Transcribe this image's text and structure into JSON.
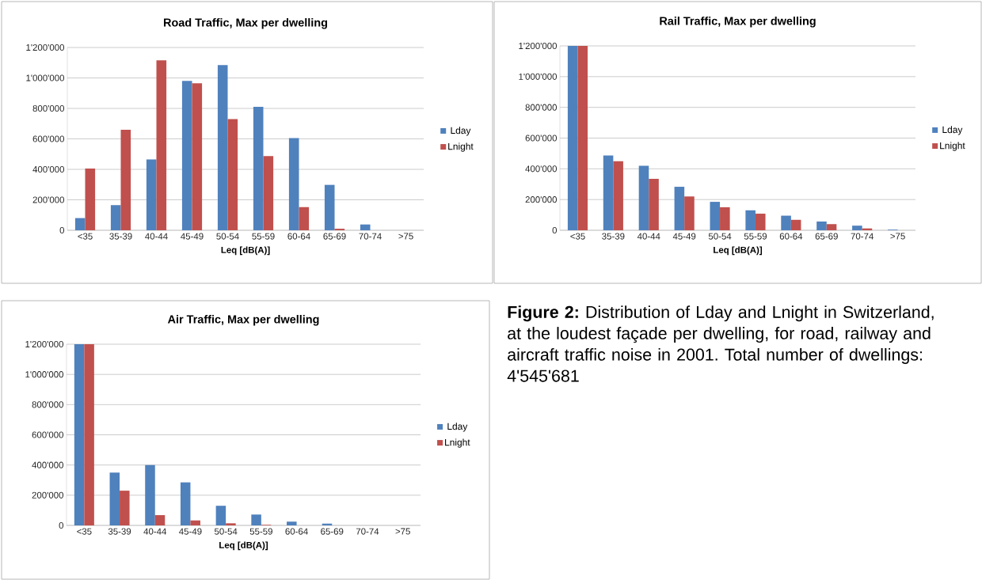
{
  "chart_data": [
    {
      "type": "bar",
      "title": "Road Traffic, Max per dwelling",
      "xlabel": "Leq [dB(A)]",
      "categories": [
        "<35",
        "35-39",
        "40-44",
        "45-49",
        "50-54",
        "55-59",
        "60-64",
        "65-69",
        "70-74",
        ">75"
      ],
      "series": [
        {
          "name": "Lday",
          "color": "#4f81bd",
          "values": [
            80000,
            165000,
            465000,
            980000,
            1085000,
            810000,
            605000,
            298000,
            38000,
            0
          ]
        },
        {
          "name": "Lnight",
          "color": "#c0504d",
          "values": [
            405000,
            660000,
            1115000,
            965000,
            730000,
            487000,
            152000,
            10000,
            0,
            0
          ]
        }
      ],
      "ylim": [
        0,
        1200000
      ],
      "yticks": [
        0,
        {
          "value": 200000,
          "label": "200'000"
        },
        {
          "value": 400000,
          "label": "400'000"
        },
        {
          "value": 600000,
          "label": "600'000"
        },
        {
          "value": 800000,
          "label": "800'000"
        },
        {
          "value": 1000000,
          "label": "1'000'000"
        },
        {
          "value": 1200000,
          "label": "1'200'000"
        }
      ],
      "grid": "y",
      "legend": "right"
    },
    {
      "type": "bar",
      "title": "Rail Traffic, Max per dwelling",
      "xlabel": "Leq [dB(A)]",
      "categories": [
        "<35",
        "35-39",
        "40-44",
        "45-49",
        "50-54",
        "55-59",
        "60-64",
        "65-69",
        "70-74",
        ">75"
      ],
      "series": [
        {
          "name": "Lday",
          "color": "#4f81bd",
          "values": [
            1200000,
            487000,
            420000,
            283000,
            185000,
            130000,
            95000,
            57000,
            30000,
            4000
          ]
        },
        {
          "name": "Lnight",
          "color": "#c0504d",
          "values": [
            1200000,
            450000,
            335000,
            220000,
            150000,
            108000,
            68000,
            40000,
            12000,
            null
          ]
        }
      ],
      "ylim": [
        0,
        1200000
      ],
      "yticks": [
        0,
        {
          "value": 200000,
          "label": "200'000"
        },
        {
          "value": 400000,
          "label": "400'000"
        },
        {
          "value": 600000,
          "label": "600'000"
        },
        {
          "value": 800000,
          "label": "800'000"
        },
        {
          "value": 1000000,
          "label": "1'000'000"
        },
        {
          "value": 1200000,
          "label": "1'200'000"
        }
      ],
      "grid": "y",
      "legend": "right"
    },
    {
      "type": "bar",
      "title": "Air Traffic, Max per dwelling",
      "xlabel": "Leq [dB(A)]",
      "categories": [
        "<35",
        "35-39",
        "40-44",
        "45-49",
        "50-54",
        "55-59",
        "60-64",
        "65-69",
        "70-74",
        ">75"
      ],
      "series": [
        {
          "name": "Lday",
          "color": "#4f81bd",
          "values": [
            1200000,
            350000,
            400000,
            285000,
            130000,
            72000,
            25000,
            12000,
            0,
            0
          ]
        },
        {
          "name": "Lnight",
          "color": "#c0504d",
          "values": [
            1200000,
            230000,
            68000,
            33000,
            14000,
            4000,
            0,
            0,
            0,
            0
          ]
        }
      ],
      "ylim": [
        0,
        1200000
      ],
      "yticks": [
        0,
        {
          "value": 200000,
          "label": "200'000"
        },
        {
          "value": 400000,
          "label": "400'000"
        },
        {
          "value": 600000,
          "label": "600'000"
        },
        {
          "value": 800000,
          "label": "800'000"
        },
        {
          "value": 1000000,
          "label": "1'000'000"
        },
        {
          "value": 1200000,
          "label": "1'200'000"
        }
      ],
      "grid": "y",
      "legend": "right"
    },
    {
      "type": "other",
      "annotations": [
        "**Figure 2:** Distribution of Lday and Lnight in Switzerland, at the loudest façade per dwelling, for road, railway and aircraft traffic noise in 2001. Total number of dwellings: 4'545'681"
      ]
    }
  ]
}
